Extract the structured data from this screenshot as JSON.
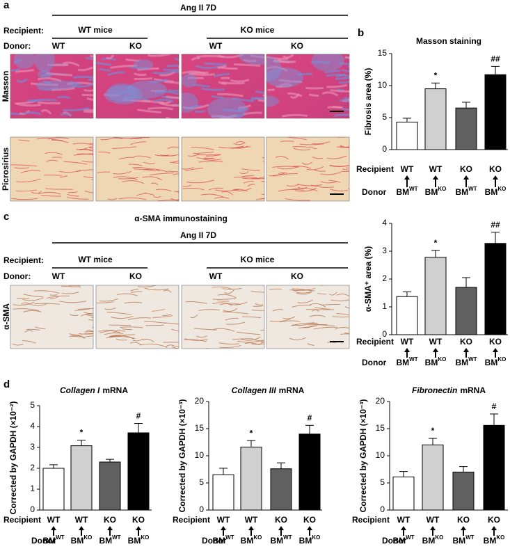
{
  "figure": {
    "panel_labels": [
      "a",
      "b",
      "c",
      "d"
    ],
    "panel_a": {
      "header": "Ang II 7D",
      "recipient_label": "Recipient:",
      "donor_label": "Donor:",
      "groups": [
        "WT mice",
        "KO mice"
      ],
      "donors": [
        "WT",
        "KO",
        "WT",
        "KO"
      ],
      "rows": [
        "Masson",
        "Picrosirius"
      ]
    },
    "panel_c": {
      "title": "α-SMA immunostaining",
      "header": "Ang II 7D",
      "recipient_label": "Recipient:",
      "donor_label": "Donor:",
      "groups": [
        "WT mice",
        "KO mice"
      ],
      "donors": [
        "WT",
        "KO",
        "WT",
        "KO"
      ],
      "rows": [
        "α-SMA"
      ]
    }
  },
  "chart_data": [
    {
      "type": "bar",
      "title": "Masson staining",
      "ylabel": "Fibrosis area (%)",
      "categories": [
        "WT",
        "WT",
        "KO",
        "KO"
      ],
      "donors": [
        {
          "base": "BM",
          "sup": "WT"
        },
        {
          "base": "BM",
          "sup": "KO"
        },
        {
          "base": "BM",
          "sup": "WT"
        },
        {
          "base": "BM",
          "sup": "KO"
        }
      ],
      "row_labels": [
        "Recipient",
        "Donor"
      ],
      "values": [
        4.3,
        9.5,
        6.5,
        11.7
      ],
      "errors": [
        0.6,
        0.9,
        0.9,
        1.3
      ],
      "colors": [
        "#ffffff",
        "#d0d0d0",
        "#606060",
        "#000000"
      ],
      "annotations": [
        null,
        "*",
        null,
        "##"
      ],
      "ylim": [
        0,
        15
      ],
      "yticks": [
        0,
        5,
        10,
        15
      ]
    },
    {
      "type": "bar",
      "ylabel": "α-SMA⁺ area (%)",
      "categories": [
        "WT",
        "WT",
        "KO",
        "KO"
      ],
      "donors": [
        {
          "base": "BM",
          "sup": "WT"
        },
        {
          "base": "BM",
          "sup": "KO"
        },
        {
          "base": "BM",
          "sup": "WT"
        },
        {
          "base": "BM",
          "sup": "KO"
        }
      ],
      "row_labels": [
        "Recipient",
        "Donor"
      ],
      "values": [
        1.37,
        2.78,
        1.7,
        3.28
      ],
      "errors": [
        0.17,
        0.25,
        0.35,
        0.4
      ],
      "colors": [
        "#ffffff",
        "#d0d0d0",
        "#606060",
        "#000000"
      ],
      "annotations": [
        null,
        "*",
        null,
        "##"
      ],
      "ylim": [
        0,
        4
      ],
      "yticks": [
        0,
        1,
        2,
        3,
        4
      ]
    },
    {
      "type": "bar",
      "title_italic": "Collagen I",
      "title": "mRNA",
      "ylabel": "Corrected by GAPDH (×10⁻²)",
      "categories": [
        "WT",
        "WT",
        "KO",
        "KO"
      ],
      "donors": [
        {
          "base": "BM",
          "sup": "WT"
        },
        {
          "base": "BM",
          "sup": "KO"
        },
        {
          "base": "BM",
          "sup": "WT"
        },
        {
          "base": "BM",
          "sup": "KO"
        }
      ],
      "row_labels": [
        "Recipient",
        "Donor"
      ],
      "values": [
        2.0,
        3.08,
        2.3,
        3.7
      ],
      "errors": [
        0.17,
        0.27,
        0.13,
        0.45
      ],
      "colors": [
        "#ffffff",
        "#d0d0d0",
        "#606060",
        "#000000"
      ],
      "annotations": [
        null,
        "*",
        null,
        "#"
      ],
      "ylim": [
        0,
        5
      ],
      "yticks": [
        0,
        1,
        2,
        3,
        4,
        5
      ]
    },
    {
      "type": "bar",
      "title_italic": "Collagen III",
      "title": "mRNA",
      "ylabel": "Corrected by GAPDH (×10⁻³)",
      "categories": [
        "WT",
        "WT",
        "KO",
        "KO"
      ],
      "donors": [
        {
          "base": "BM",
          "sup": "WT"
        },
        {
          "base": "BM",
          "sup": "KO"
        },
        {
          "base": "BM",
          "sup": "WT"
        },
        {
          "base": "BM",
          "sup": "KO"
        }
      ],
      "row_labels": [
        "Recipient",
        "Donor"
      ],
      "values": [
        6.5,
        11.6,
        7.6,
        14
      ],
      "errors": [
        1.2,
        1.2,
        1.1,
        1.6
      ],
      "colors": [
        "#ffffff",
        "#d0d0d0",
        "#606060",
        "#000000"
      ],
      "annotations": [
        null,
        "*",
        null,
        "#"
      ],
      "ylim": [
        0,
        20
      ],
      "yticks": [
        0,
        5,
        10,
        15,
        20
      ]
    },
    {
      "type": "bar",
      "title_italic": "Fibronectin",
      "title": "mRNA",
      "ylabel": "Corrected by GAPDH (×10⁻³)",
      "categories": [
        "WT",
        "WT",
        "KO",
        "KO"
      ],
      "donors": [
        {
          "base": "BM",
          "sup": "WT"
        },
        {
          "base": "BM",
          "sup": "KO"
        },
        {
          "base": "BM",
          "sup": "WT"
        },
        {
          "base": "BM",
          "sup": "KO"
        }
      ],
      "row_labels": [
        "Recipient",
        "Donor"
      ],
      "values": [
        6.1,
        12,
        7,
        15.6
      ],
      "errors": [
        1,
        1.2,
        1,
        2.1
      ],
      "colors": [
        "#ffffff",
        "#d0d0d0",
        "#606060",
        "#000000"
      ],
      "annotations": [
        null,
        "*",
        null,
        "#"
      ],
      "ylim": [
        0,
        20
      ],
      "yticks": [
        0,
        5,
        10,
        15,
        20
      ]
    }
  ]
}
